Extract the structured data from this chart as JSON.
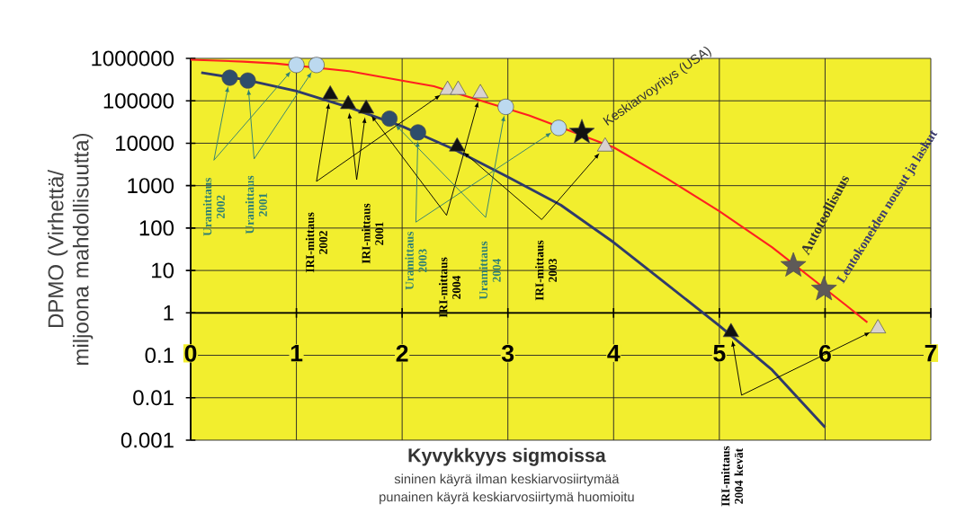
{
  "chart_data": {
    "type": "line",
    "xlabel": "Kyvykkyys sigmoissa",
    "ylabel": "DPMO (Virhettä/ miljoona mahdollisuutta)",
    "log": "y",
    "grid": true,
    "xlim": [
      0,
      7
    ],
    "ylim": [
      0.001,
      1000000
    ],
    "xticks": [
      0,
      1,
      2,
      3,
      4,
      5,
      6,
      7
    ],
    "yticks": [
      0.001,
      0.01,
      0.1,
      1,
      10,
      100,
      1000,
      10000,
      100000,
      1000000
    ],
    "series": [
      {
        "color": "#ff2020",
        "x": [
          0,
          0.5,
          0.8,
          1.5,
          2,
          2.3,
          3.2,
          4,
          4.5,
          5,
          5.5,
          6.2,
          6.4
        ],
        "values": [
          930000,
          840000,
          760000,
          500000,
          300000,
          220000,
          45000,
          8000,
          1500,
          250,
          35,
          1.5,
          0.6
        ]
      },
      {
        "color": "#2f3a6b",
        "x": [
          0.1,
          0.5,
          1,
          1.5,
          2,
          2.5,
          3,
          3.5,
          4,
          4.5,
          5,
          5.5,
          6
        ],
        "values": [
          460000,
          320000,
          170000,
          70000,
          25000,
          7000,
          1600,
          350,
          46,
          4.8,
          0.5,
          0.045,
          0.002
        ]
      },
      {
        "type": "scatter",
        "marker": "circle",
        "color": "#2e4d6b",
        "x": [
          0.37,
          0.54,
          1.88,
          2.15
        ],
        "values": [
          350000,
          300000,
          38000,
          18000
        ]
      },
      {
        "type": "scatter",
        "marker": "circle",
        "color": "#bcd9ef",
        "x": [
          1.0,
          1.19,
          2.98,
          3.48
        ],
        "values": [
          700000,
          700000,
          72000,
          23000
        ]
      },
      {
        "type": "scatter",
        "marker": "triangle",
        "color": "#111111",
        "x": [
          1.32,
          1.49,
          1.66,
          2.52,
          5.11
        ],
        "values": [
          140000,
          83000,
          65000,
          8300,
          0.35
        ]
      },
      {
        "type": "scatter",
        "marker": "triangle",
        "color": "#d9d2cf",
        "x": [
          2.43,
          2.53,
          2.74,
          3.92,
          6.5
        ],
        "values": [
          180000,
          180000,
          150000,
          8300,
          0.43
        ]
      },
      {
        "type": "scatter",
        "marker": "star",
        "color": "#111111",
        "x": [
          3.7
        ],
        "values": [
          18000
        ]
      },
      {
        "type": "scatter",
        "marker": "star",
        "color": "#5e5a58",
        "x": [
          5.7,
          5.99
        ],
        "values": [
          13,
          3.6
        ]
      }
    ],
    "annotations": [
      "Uramittaus 2002",
      "Uramittaus 2001",
      "IRI-mittaus 2002",
      "IRI-mittaus 2001",
      "Uramittaus 2003",
      "IRI-mittaus 2004",
      "Uramittaus 2004",
      "IRI-mittaus 2003",
      "IRI-mittaus 2004 kevät",
      "Keskiarvoyritys (USA)",
      "Autoteollisuus",
      "Lentokoneiden nousut ja laskut",
      "sininen käyrä ilman keskiarvosiirtymää",
      "punainen käyrä keskiarvosiirtymä huomioitu"
    ]
  }
}
